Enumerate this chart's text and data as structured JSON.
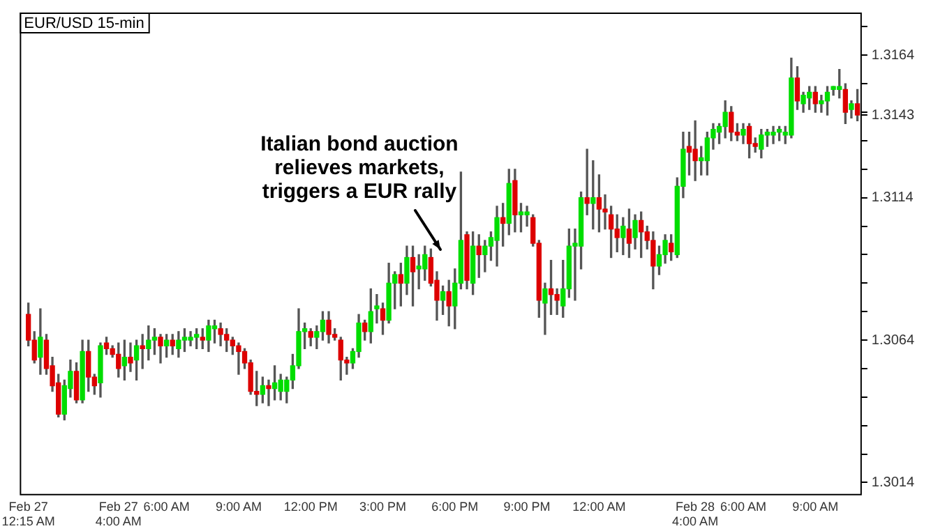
{
  "chart_data": {
    "type": "candlestick",
    "title": "EUR/USD 15-min",
    "categories": [
      "Feb 27\n12:15 AM",
      null,
      null,
      null,
      null,
      null,
      null,
      null,
      null,
      null,
      null,
      null,
      null,
      null,
      null,
      "Feb 27\n4:00 AM",
      null,
      null,
      null,
      null,
      null,
      null,
      null,
      "6:00 AM",
      null,
      null,
      null,
      null,
      null,
      null,
      null,
      null,
      null,
      null,
      null,
      "9:00 AM",
      null,
      null,
      null,
      null,
      null,
      null,
      null,
      null,
      null,
      null,
      null,
      "12:00 PM",
      null,
      null,
      null,
      null,
      null,
      null,
      null,
      null,
      null,
      null,
      null,
      "3:00 PM",
      null,
      null,
      null,
      null,
      null,
      null,
      null,
      null,
      null,
      null,
      null,
      "6:00 PM",
      null,
      null,
      null,
      null,
      null,
      null,
      null,
      null,
      null,
      null,
      null,
      "9:00 PM",
      null,
      null,
      null,
      null,
      null,
      null,
      null,
      null,
      null,
      null,
      null,
      "12:00 AM",
      null,
      null,
      null,
      null,
      null,
      null,
      null,
      null,
      null,
      null,
      null,
      null,
      null,
      null,
      null,
      "Feb 28\n4:00 AM",
      null,
      null,
      null,
      null,
      null,
      null,
      null,
      "6:00 AM",
      null,
      null,
      null,
      null,
      null,
      null,
      null,
      null,
      null,
      null,
      null,
      "9:00 AM",
      null,
      null,
      null,
      null,
      null,
      null,
      null
    ],
    "ohlc": [
      [
        1.3073,
        1.3077,
        1.3062,
        1.3064
      ],
      [
        1.3064,
        1.3067,
        1.3056,
        1.3057
      ],
      [
        1.3058,
        1.3075,
        1.3052,
        1.3065
      ],
      [
        1.3064,
        1.3066,
        1.3052,
        1.3054
      ],
      [
        1.3055,
        1.3058,
        1.3046,
        1.3048
      ],
      [
        1.3049,
        1.3052,
        1.3037,
        1.3038
      ],
      [
        1.3038,
        1.305,
        1.3036,
        1.3048
      ],
      [
        1.3047,
        1.3057,
        1.3044,
        1.3053
      ],
      [
        1.3053,
        1.3056,
        1.3042,
        1.3043
      ],
      [
        1.3043,
        1.3064,
        1.3042,
        1.306
      ],
      [
        1.306,
        1.3064,
        1.3046,
        1.3051
      ],
      [
        1.3051,
        1.3052,
        1.3045,
        1.3048
      ],
      [
        1.3049,
        1.3063,
        1.3044,
        1.3062
      ],
      [
        1.3063,
        1.3065,
        1.3059,
        1.3061
      ],
      [
        1.3061,
        1.3062,
        1.3058,
        1.3059
      ],
      [
        1.3059,
        1.3063,
        1.3051,
        1.3054
      ],
      [
        1.3055,
        1.3064,
        1.305,
        1.3058
      ],
      [
        1.3058,
        1.3063,
        1.3053,
        1.3056
      ],
      [
        1.3057,
        1.3064,
        1.305,
        1.3062
      ],
      [
        1.3062,
        1.3066,
        1.3054,
        1.3061
      ],
      [
        1.3061,
        1.3069,
        1.3057,
        1.3064
      ],
      [
        1.3064,
        1.3068,
        1.3059,
        1.3065
      ],
      [
        1.3065,
        1.3066,
        1.3056,
        1.3062
      ],
      [
        1.3062,
        1.3066,
        1.3058,
        1.3064
      ],
      [
        1.3064,
        1.3066,
        1.3059,
        1.3062
      ],
      [
        1.3061,
        1.3067,
        1.3058,
        1.3064
      ],
      [
        1.3064,
        1.3068,
        1.306,
        1.3065
      ],
      [
        1.3064,
        1.3067,
        1.3062,
        1.3065
      ],
      [
        1.3065,
        1.3068,
        1.3061,
        1.3066
      ],
      [
        1.3065,
        1.3068,
        1.3061,
        1.3064
      ],
      [
        1.3064,
        1.3071,
        1.306,
        1.3069
      ],
      [
        1.3068,
        1.3071,
        1.3063,
        1.3069
      ],
      [
        1.3068,
        1.307,
        1.3062,
        1.3066
      ],
      [
        1.3066,
        1.3068,
        1.306,
        1.3064
      ],
      [
        1.3064,
        1.3065,
        1.3059,
        1.3062
      ],
      [
        1.3062,
        1.3063,
        1.3052,
        1.306
      ],
      [
        1.306,
        1.3061,
        1.3054,
        1.3056
      ],
      [
        1.3056,
        1.3057,
        1.3045,
        1.3046
      ],
      [
        1.3046,
        1.3053,
        1.3041,
        1.3045
      ],
      [
        1.3045,
        1.3051,
        1.3042,
        1.3048
      ],
      [
        1.3048,
        1.305,
        1.3041,
        1.3047
      ],
      [
        1.3047,
        1.3055,
        1.3043,
        1.3049
      ],
      [
        1.3046,
        1.3052,
        1.3043,
        1.305
      ],
      [
        1.3046,
        1.3051,
        1.3042,
        1.305
      ],
      [
        1.305,
        1.3059,
        1.3047,
        1.3055
      ],
      [
        1.3055,
        1.3075,
        1.3054,
        1.3067
      ],
      [
        1.3067,
        1.307,
        1.3061,
        1.3068
      ],
      [
        1.3067,
        1.3068,
        1.3062,
        1.3065
      ],
      [
        1.3065,
        1.3069,
        1.3061,
        1.3067
      ],
      [
        1.3067,
        1.3074,
        1.3064,
        1.3071
      ],
      [
        1.3071,
        1.3074,
        1.3063,
        1.3066
      ],
      [
        1.3066,
        1.3068,
        1.3064,
        1.3065
      ],
      [
        1.3064,
        1.3065,
        1.305,
        1.3057
      ],
      [
        1.3057,
        1.3058,
        1.3052,
        1.3056
      ],
      [
        1.3056,
        1.3061,
        1.3054,
        1.306
      ],
      [
        1.306,
        1.3073,
        1.3058,
        1.307
      ],
      [
        1.307,
        1.3071,
        1.3064,
        1.3067
      ],
      [
        1.3067,
        1.3082,
        1.3063,
        1.3074
      ],
      [
        1.3075,
        1.308,
        1.307,
        1.3076
      ],
      [
        1.3075,
        1.3077,
        1.3066,
        1.3071
      ],
      [
        1.3071,
        1.3091,
        1.307,
        1.3084
      ],
      [
        1.3084,
        1.3088,
        1.3075,
        1.3087
      ],
      [
        1.3087,
        1.3091,
        1.3076,
        1.3084
      ],
      [
        1.3084,
        1.3097,
        1.308,
        1.3093
      ],
      [
        1.3093,
        1.3097,
        1.3076,
        1.3088
      ],
      [
        1.3089,
        1.3094,
        1.3082,
        1.309
      ],
      [
        1.3089,
        1.3097,
        1.3085,
        1.3094
      ],
      [
        1.3093,
        1.3096,
        1.3083,
        1.3084
      ],
      [
        1.3085,
        1.3088,
        1.3071,
        1.3078
      ],
      [
        1.3078,
        1.3083,
        1.3073,
        1.3081
      ],
      [
        1.3081,
        1.3085,
        1.3069,
        1.3076
      ],
      [
        1.3076,
        1.3089,
        1.3068,
        1.3084
      ],
      [
        1.3084,
        1.3123,
        1.3082,
        1.3099
      ],
      [
        1.3101,
        1.3102,
        1.3082,
        1.3085
      ],
      [
        1.3084,
        1.3102,
        1.308,
        1.3097
      ],
      [
        1.3097,
        1.3101,
        1.3086,
        1.3094
      ],
      [
        1.3094,
        1.3099,
        1.3088,
        1.3097
      ],
      [
        1.3097,
        1.3102,
        1.3092,
        1.31
      ],
      [
        1.3099,
        1.3111,
        1.309,
        1.3107
      ],
      [
        1.3107,
        1.3112,
        1.3097,
        1.3105
      ],
      [
        1.3105,
        1.3124,
        1.3101,
        1.3119
      ],
      [
        1.312,
        1.3124,
        1.3102,
        1.3108
      ],
      [
        1.3108,
        1.3112,
        1.3102,
        1.3109
      ],
      [
        1.3108,
        1.3111,
        1.3104,
        1.3109
      ],
      [
        1.3107,
        1.3108,
        1.3097,
        1.3098
      ],
      [
        1.3098,
        1.3099,
        1.3072,
        1.3078
      ],
      [
        1.3077,
        1.3084,
        1.3066,
        1.3082
      ],
      [
        1.3082,
        1.3092,
        1.3073,
        1.308
      ],
      [
        1.308,
        1.3082,
        1.3073,
        1.3078
      ],
      [
        1.3076,
        1.3092,
        1.3072,
        1.3082
      ],
      [
        1.3082,
        1.3103,
        1.3079,
        1.3097
      ],
      [
        1.3097,
        1.3103,
        1.3078,
        1.3098
      ],
      [
        1.3097,
        1.3116,
        1.3089,
        1.3114
      ],
      [
        1.3114,
        1.3131,
        1.3108,
        1.3112
      ],
      [
        1.3112,
        1.3127,
        1.3103,
        1.3114
      ],
      [
        1.3114,
        1.3122,
        1.3102,
        1.311
      ],
      [
        1.311,
        1.3115,
        1.3103,
        1.3109
      ],
      [
        1.3108,
        1.3111,
        1.3093,
        1.3103
      ],
      [
        1.3103,
        1.3108,
        1.3095,
        1.31
      ],
      [
        1.31,
        1.3107,
        1.3094,
        1.3104
      ],
      [
        1.3103,
        1.311,
        1.3093,
        1.3098
      ],
      [
        1.31,
        1.3108,
        1.3096,
        1.3106
      ],
      [
        1.3106,
        1.3109,
        1.3093,
        1.3102
      ],
      [
        1.3102,
        1.3104,
        1.3096,
        1.3099
      ],
      [
        1.3099,
        1.3102,
        1.3082,
        1.309
      ],
      [
        1.309,
        1.3097,
        1.3087,
        1.3094
      ],
      [
        1.3094,
        1.3101,
        1.3091,
        1.3099
      ],
      [
        1.3098,
        1.3101,
        1.3092,
        1.3095
      ],
      [
        1.3094,
        1.3121,
        1.3093,
        1.3118
      ],
      [
        1.3118,
        1.3137,
        1.3114,
        1.3131
      ],
      [
        1.3132,
        1.3137,
        1.3122,
        1.313
      ],
      [
        1.3131,
        1.3141,
        1.312,
        1.3127
      ],
      [
        1.3127,
        1.3132,
        1.3122,
        1.3128
      ],
      [
        1.3127,
        1.3137,
        1.3122,
        1.3135
      ],
      [
        1.3135,
        1.314,
        1.3131,
        1.3138
      ],
      [
        1.3137,
        1.314,
        1.3133,
        1.3139
      ],
      [
        1.3139,
        1.3148,
        1.3135,
        1.3144
      ],
      [
        1.3144,
        1.3146,
        1.3134,
        1.3137
      ],
      [
        1.3137,
        1.314,
        1.3134,
        1.3136
      ],
      [
        1.3136,
        1.314,
        1.3133,
        1.3138
      ],
      [
        1.3139,
        1.314,
        1.3128,
        1.3133
      ],
      [
        1.3133,
        1.3135,
        1.313,
        1.3132
      ],
      [
        1.3131,
        1.3138,
        1.3128,
        1.3136
      ],
      [
        1.3136,
        1.3138,
        1.3132,
        1.3137
      ],
      [
        1.3136,
        1.3139,
        1.3133,
        1.3137
      ],
      [
        1.3137,
        1.3139,
        1.3134,
        1.3138
      ],
      [
        1.3136,
        1.3139,
        1.3133,
        1.3137
      ],
      [
        1.3136,
        1.3163,
        1.3135,
        1.3156
      ],
      [
        1.3156,
        1.316,
        1.3145,
        1.3148
      ],
      [
        1.3147,
        1.3151,
        1.3144,
        1.315
      ],
      [
        1.3149,
        1.3153,
        1.3145,
        1.3151
      ],
      [
        1.3151,
        1.3153,
        1.3144,
        1.3147
      ],
      [
        1.3147,
        1.315,
        1.3144,
        1.3148
      ],
      [
        1.3148,
        1.3153,
        1.3143,
        1.3151
      ],
      [
        1.3152,
        1.3153,
        1.315,
        1.3153
      ],
      [
        1.3152,
        1.3159,
        1.3149,
        1.3153
      ],
      [
        1.3152,
        1.3154,
        1.314,
        1.3144
      ],
      [
        1.3145,
        1.3148,
        1.3142,
        1.3147
      ],
      [
        1.3147,
        1.3152,
        1.3141,
        1.3143
      ]
    ],
    "ylim": [
      1.301,
      1.3179
    ],
    "yticks": [
      1.3014,
      {
        "value": 1.3024,
        "label": null
      },
      {
        "value": 1.3034,
        "label": null
      },
      {
        "value": 1.3044,
        "label": null
      },
      {
        "value": 1.3054,
        "label": null
      },
      1.3064,
      {
        "value": 1.3074,
        "label": null
      },
      {
        "value": 1.3084,
        "label": null
      },
      {
        "value": 1.3094,
        "label": null
      },
      {
        "value": 1.3104,
        "label": null
      },
      1.3114,
      {
        "value": 1.3124,
        "label": null
      },
      {
        "value": 1.3134,
        "label": null
      },
      1.3143,
      {
        "value": 1.3144,
        "label": null
      },
      {
        "value": 1.3154,
        "label": null
      },
      1.3164,
      {
        "value": 1.3174,
        "label": null
      }
    ],
    "annotations": [
      "Italian bond auction\nrelieves markets,\ntriggers a EUR rally"
    ]
  }
}
